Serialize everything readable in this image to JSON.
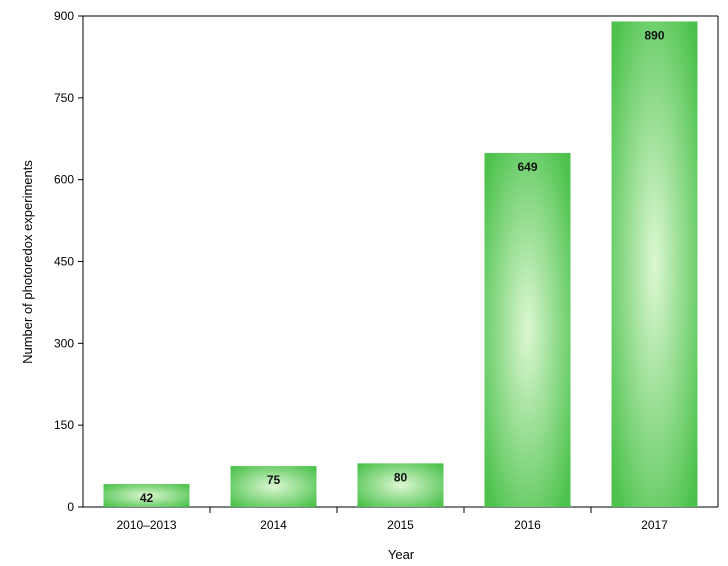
{
  "chart_data": {
    "type": "bar",
    "title": "",
    "xlabel": "Year",
    "ylabel": "Number of photoredox experiments",
    "categories": [
      "2010–2013",
      "2014",
      "2015",
      "2016",
      "2017"
    ],
    "values": [
      42,
      75,
      80,
      649,
      890
    ],
    "data_labels": [
      "42",
      "75",
      "80",
      "649",
      "890"
    ],
    "ylim": [
      0,
      900
    ],
    "yticks": [
      0,
      150,
      300,
      450,
      600,
      750,
      900
    ],
    "ytick_labels": [
      "0",
      "150",
      "300",
      "450",
      "600",
      "750",
      "900"
    ],
    "grid": false,
    "legend": "none",
    "colors": {
      "bar_edge": "#4cc24c",
      "bar_center": "#dcf7d2",
      "axis": "#000000"
    }
  }
}
